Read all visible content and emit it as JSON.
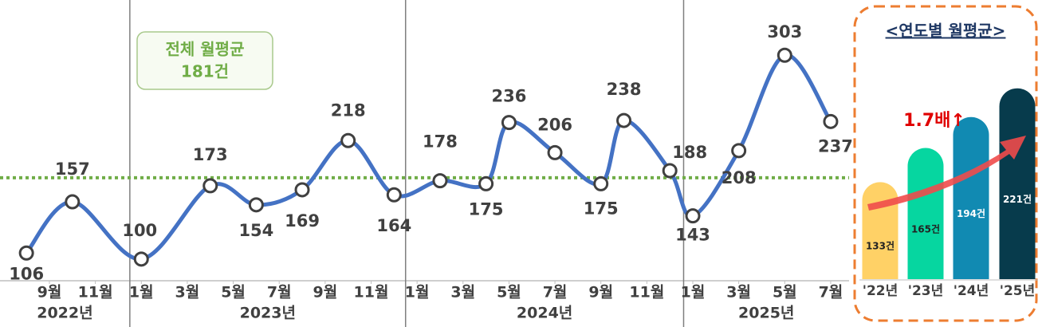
{
  "chart_data": [
    {
      "type": "line",
      "x": [
        8,
        10,
        13,
        16,
        18,
        20,
        22,
        24,
        26,
        28,
        29,
        31,
        33,
        34,
        36,
        37,
        39,
        41,
        43
      ],
      "values": [
        106,
        157,
        100,
        173,
        154,
        169,
        218,
        164,
        178,
        175,
        236,
        206,
        175,
        238,
        188,
        143,
        208,
        303,
        237
      ],
      "color": "#4472c4",
      "xlim": [
        6.85,
        43.8
      ],
      "ylim": [
        80,
        358
      ],
      "xticks": [
        {
          "value": 9,
          "label": "9월"
        },
        {
          "value": 11,
          "label": "11월"
        },
        {
          "value": 13,
          "label": "1월"
        },
        {
          "value": 15,
          "label": "3월"
        },
        {
          "value": 17,
          "label": "5월"
        },
        {
          "value": 19,
          "label": "7월"
        },
        {
          "value": 21,
          "label": "9월"
        },
        {
          "value": 23,
          "label": "11월"
        },
        {
          "value": 25,
          "label": "1월"
        },
        {
          "value": 27,
          "label": "3월"
        },
        {
          "value": 29,
          "label": "5월"
        },
        {
          "value": 31,
          "label": "7월"
        },
        {
          "value": 33,
          "label": "9월"
        },
        {
          "value": 35,
          "label": "11월"
        },
        {
          "value": 37,
          "label": "1월"
        },
        {
          "value": 39,
          "label": "3월"
        },
        {
          "value": 41,
          "label": "5월"
        },
        {
          "value": 43,
          "label": "7월"
        }
      ],
      "year_groups": [
        {
          "label": "2022년",
          "start": 6.85,
          "end": 12.5
        },
        {
          "label": "2023년",
          "start": 12.5,
          "end": 24.5
        },
        {
          "label": "2024년",
          "start": 24.5,
          "end": 36.6
        },
        {
          "label": "2025년",
          "start": 36.6,
          "end": 43.8
        }
      ],
      "average": {
        "label": "전체 월평균",
        "value": 181,
        "value_label": "181건",
        "color": "#70ad47"
      }
    },
    {
      "type": "bar",
      "title": "<연도별 월평균>",
      "categories": [
        "'22년",
        "'23년",
        "'24년",
        "'25년"
      ],
      "values": [
        133,
        165,
        194,
        221
      ],
      "value_labels": [
        "133건",
        "165건",
        "194건",
        "221건"
      ],
      "colors": [
        "#ffd166",
        "#06d6a0",
        "#118ab2",
        "#073b4c"
      ],
      "ylim": [
        42,
        229
      ],
      "annotation": "1.7배↑"
    }
  ]
}
